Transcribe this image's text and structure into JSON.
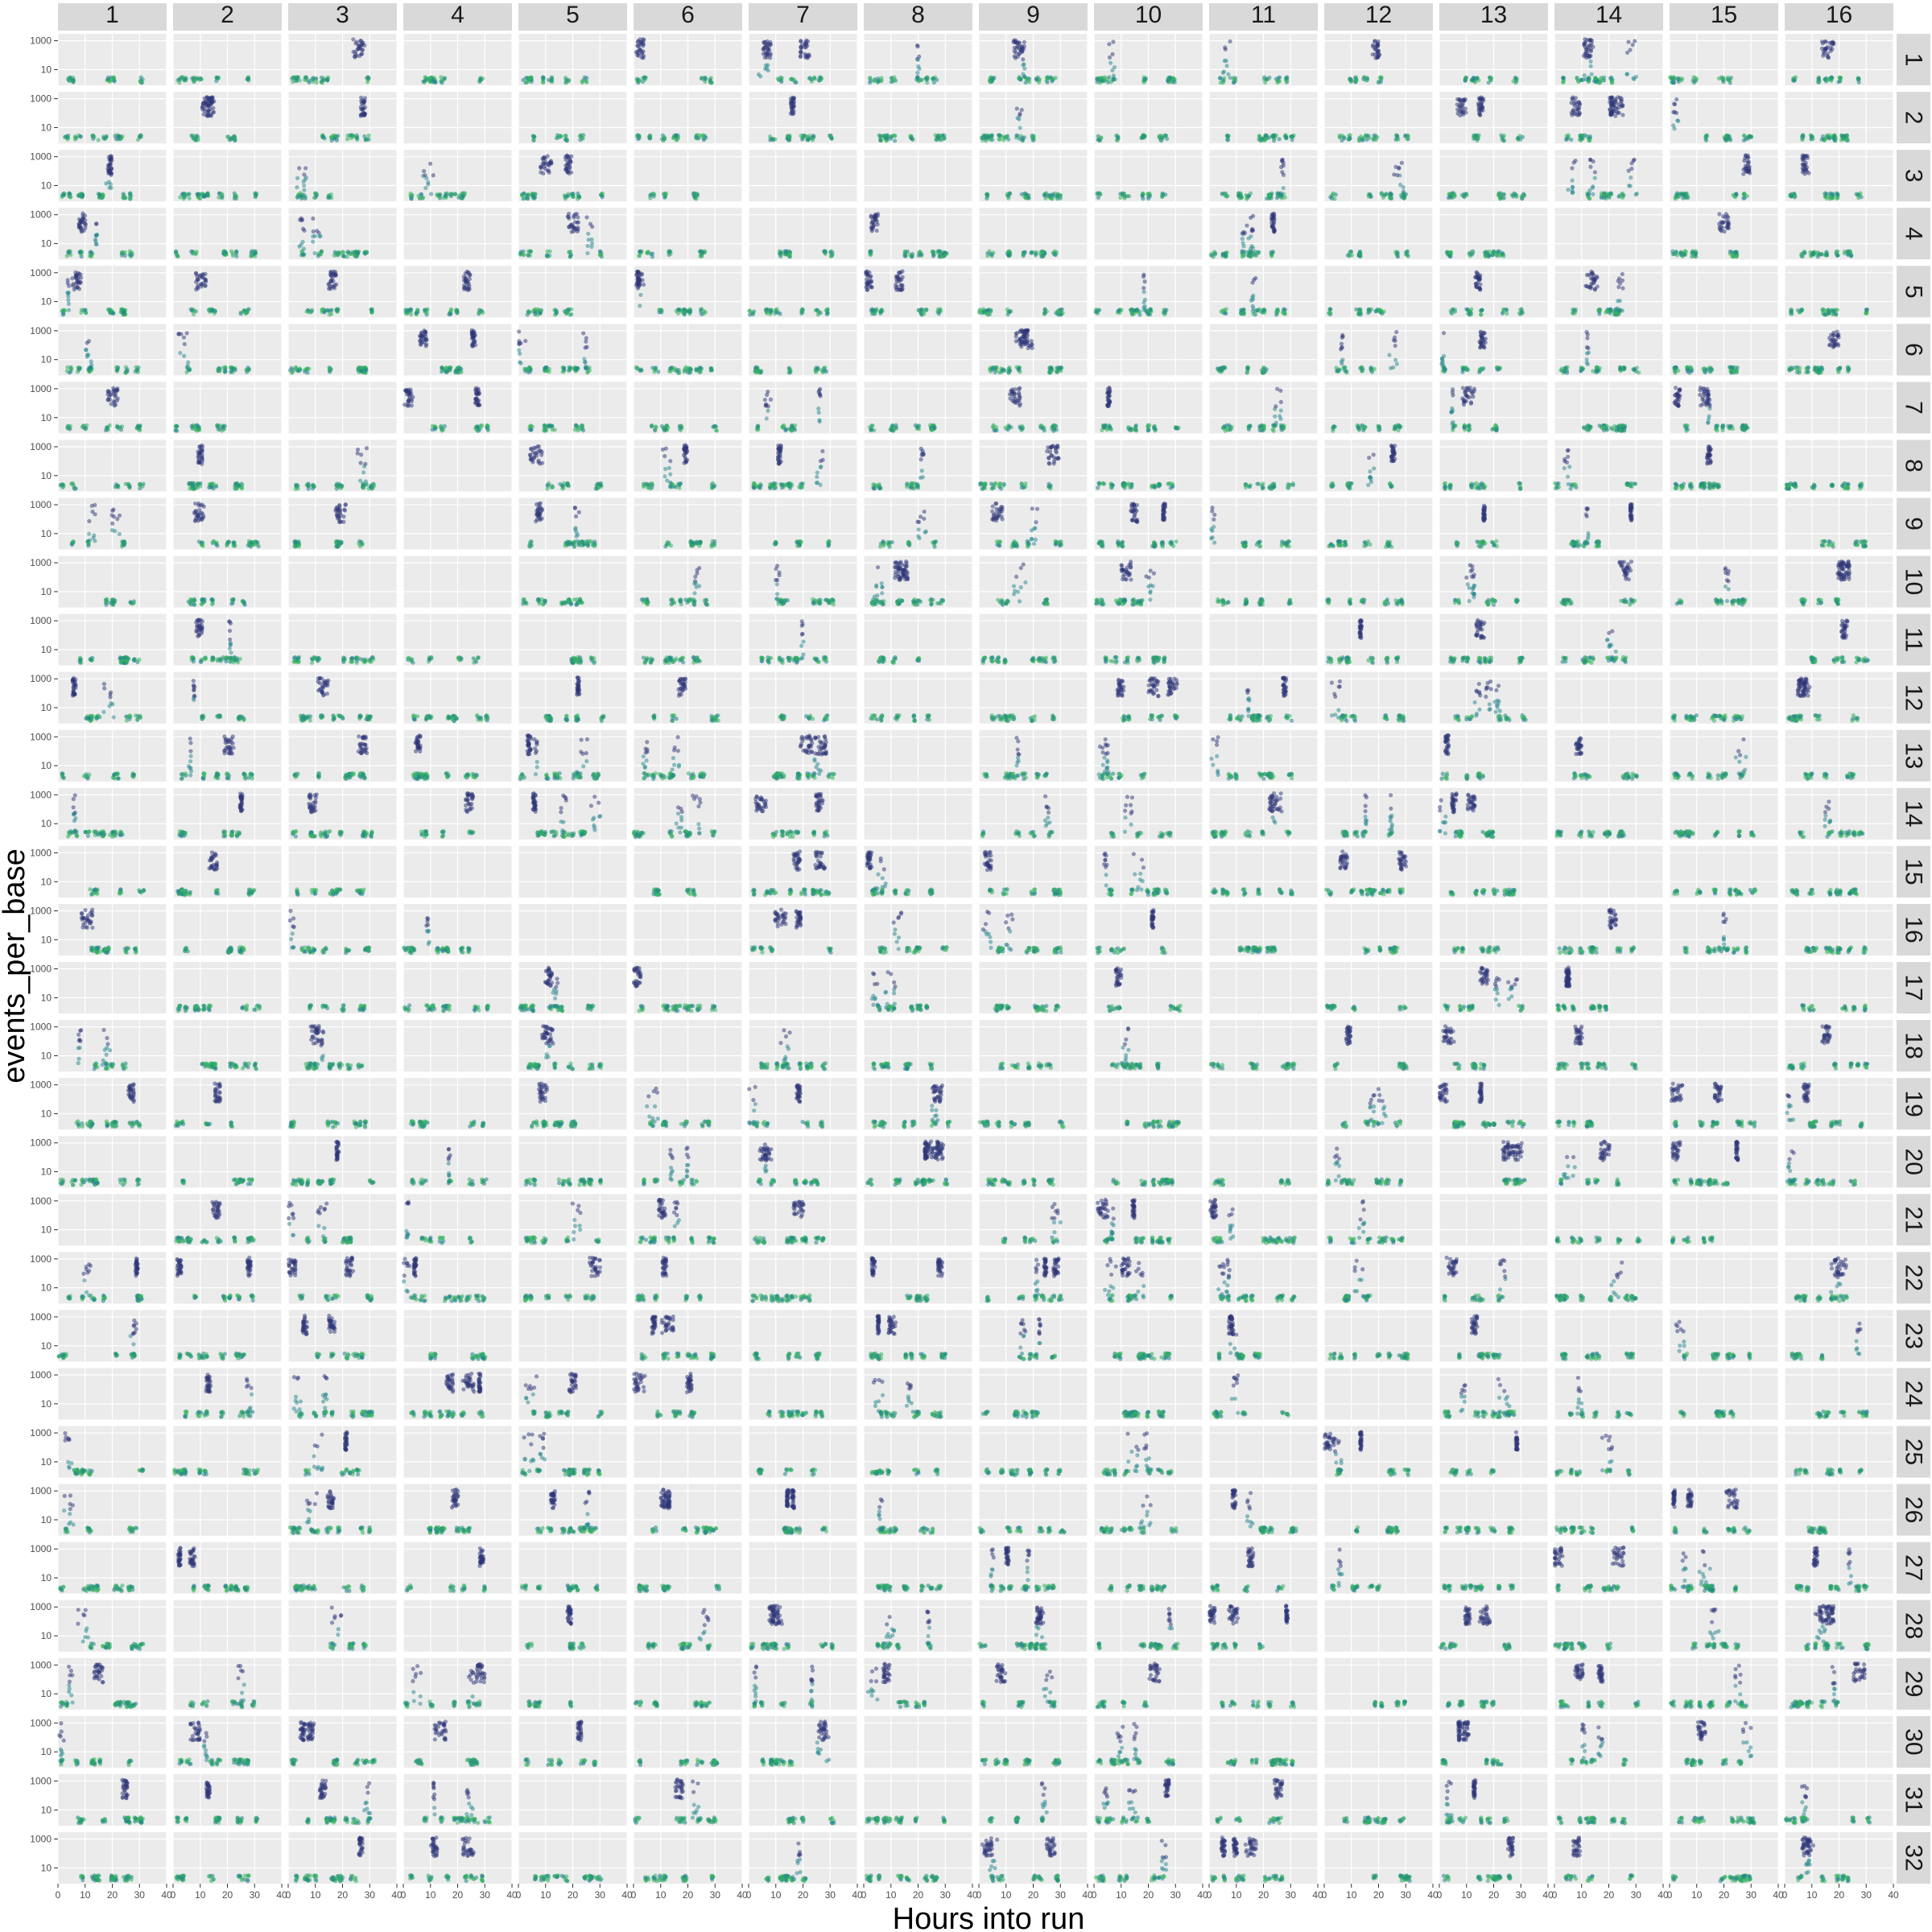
{
  "chart_data": {
    "type": "scatter",
    "layout": "facet_grid",
    "xlabel": "Hours into run",
    "ylabel": "events_per_base",
    "column_facets": [
      "1",
      "2",
      "3",
      "4",
      "5",
      "6",
      "7",
      "8",
      "9",
      "10",
      "11",
      "12",
      "13",
      "14",
      "15",
      "16"
    ],
    "row_facets": [
      "1",
      "2",
      "3",
      "4",
      "5",
      "6",
      "7",
      "8",
      "9",
      "10",
      "11",
      "12",
      "13",
      "14",
      "15",
      "16",
      "17",
      "18",
      "19",
      "20",
      "21",
      "22",
      "23",
      "24",
      "25",
      "26",
      "27",
      "28",
      "29",
      "30",
      "31",
      "32"
    ],
    "xlim": [
      0,
      40
    ],
    "x_ticks": [
      0,
      10,
      20,
      30,
      40
    ],
    "y_scale": "log10",
    "ylim": [
      0.8,
      3000
    ],
    "y_ticks": [
      10,
      1000
    ],
    "y_tick_labels": [
      "10",
      "1000"
    ],
    "grid": true,
    "colors": {
      "panel_background": "#ebebeb",
      "grid_major": "#ffffff",
      "strip_background": "#d9d9d9",
      "point_high": "#2d3578",
      "point_mid": "#25858e",
      "point_low": "#35b25f"
    },
    "point_color_gradient": "dark blue at high events_per_base, green near baseline",
    "description_of_points": "Each panel: dense baseline cluster near ~1-3 events_per_base, with intermittent dense columns reaching ~1000 at particular hours"
  }
}
